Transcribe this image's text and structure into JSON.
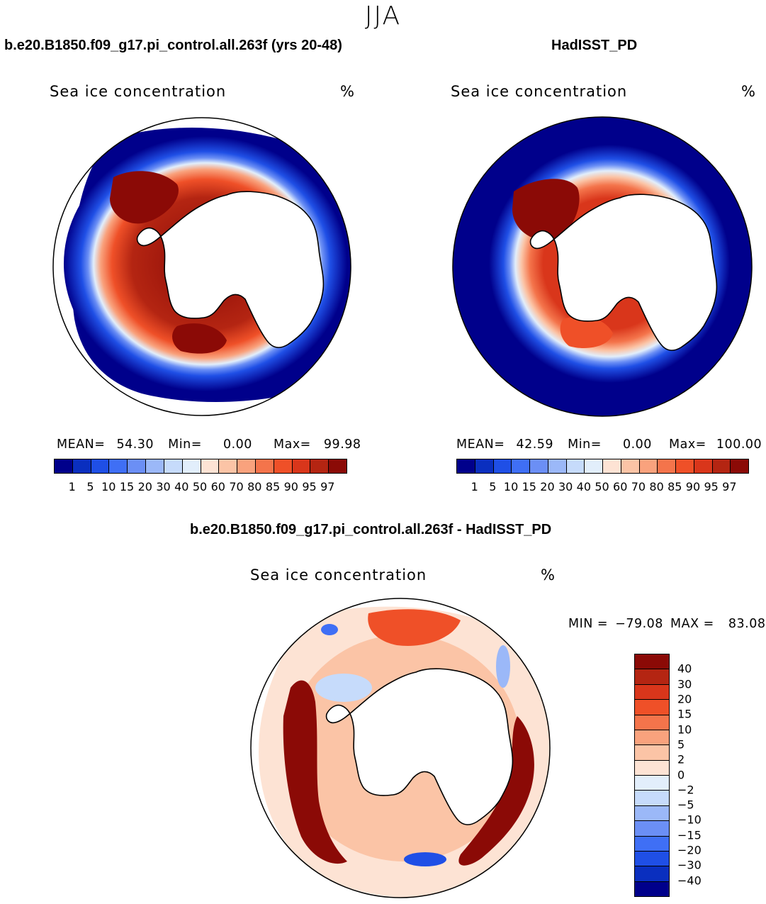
{
  "figure": {
    "season": "JJA",
    "ice_color_labels": [
      "1",
      "5",
      "10",
      "15",
      "20",
      "30",
      "40",
      "50",
      "60",
      "70",
      "80",
      "85",
      "90",
      "95",
      "97"
    ],
    "ice_colors": [
      "#00008b",
      "#0a2fbf",
      "#1f4fe6",
      "#3f6ff5",
      "#6b8ff5",
      "#9bb8f8",
      "#c6dbfb",
      "#e2eefb",
      "#fde3d4",
      "#fbc4a6",
      "#f9a27d",
      "#f4744b",
      "#ef5028",
      "#d9361b",
      "#b42512",
      "#8b0a06"
    ],
    "diff_color_labels": [
      "40",
      "30",
      "20",
      "15",
      "10",
      "5",
      "2",
      "0",
      "−2",
      "−5",
      "−10",
      "−15",
      "−20",
      "−30",
      "−40"
    ],
    "diff_colors": [
      "#8b0a06",
      "#b42512",
      "#d9361b",
      "#ef5028",
      "#f4744b",
      "#f9a27d",
      "#fbc4a6",
      "#fde3d4",
      "#e2eefb",
      "#c6dbfb",
      "#9bb8f8",
      "#6b8ff5",
      "#3f6ff5",
      "#1f4fe6",
      "#0a2fbf",
      "#00008b"
    ]
  },
  "panels": {
    "model": {
      "case_title": "b.e20.B1850.f09_g17.pi_control.all.263f (yrs 20-48)",
      "variable": "Sea ice concentration",
      "units": "%",
      "mean_label": "MEAN=",
      "mean": "54.30",
      "min_label": "Min=",
      "min": "0.00",
      "max_label": "Max=",
      "max": "99.98"
    },
    "obs": {
      "case_title": "HadISST_PD",
      "variable": "Sea ice concentration",
      "units": "%",
      "mean_label": "MEAN=",
      "mean": "42.59",
      "min_label": "Min=",
      "min": "0.00",
      "max_label": "Max=",
      "max": "100.00"
    },
    "diff": {
      "case_title": "b.e20.B1850.f09_g17.pi_control.all.263f - HadISST_PD",
      "variable": "Sea ice concentration",
      "units": "%",
      "min_label": "MIN =",
      "min": "−79.08",
      "max_label": "MAX =",
      "max": "83.08"
    }
  }
}
